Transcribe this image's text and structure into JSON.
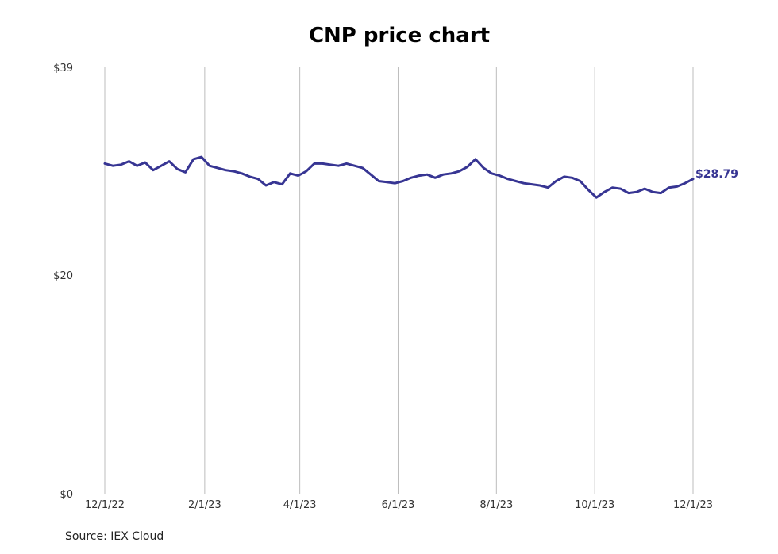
{
  "chart_data": {
    "type": "line",
    "title": "CNP price chart",
    "source": "Source: IEX Cloud",
    "xlabel": "",
    "ylabel": "",
    "x_tick_labels": [
      "12/1/22",
      "2/1/23",
      "4/1/23",
      "6/1/23",
      "8/1/23",
      "10/1/23",
      "12/1/23"
    ],
    "x_tick_dates": [
      "2022-12-01",
      "2023-02-01",
      "2023-04-01",
      "2023-06-01",
      "2023-08-01",
      "2023-10-01",
      "2023-12-01"
    ],
    "y_tick_labels": [
      "$0",
      "$20",
      "$39"
    ],
    "y_tick_values": [
      0,
      20,
      39
    ],
    "ylim": [
      0,
      39
    ],
    "xlim": [
      "2022-12-01",
      "2023-12-01"
    ],
    "grid": "vertical",
    "last_value_label": "$28.79",
    "color": "#373593",
    "series": [
      {
        "x": [
          "2022-12-01",
          "2022-12-06",
          "2022-12-11",
          "2022-12-16",
          "2022-12-21",
          "2022-12-26",
          "2022-12-31",
          "2023-01-05",
          "2023-01-10",
          "2023-01-15",
          "2023-01-20",
          "2023-01-25",
          "2023-01-30",
          "2023-02-04",
          "2023-02-09",
          "2023-02-14",
          "2023-02-19",
          "2023-02-24",
          "2023-03-01",
          "2023-03-06",
          "2023-03-11",
          "2023-03-16",
          "2023-03-21",
          "2023-03-26",
          "2023-03-31",
          "2023-04-05",
          "2023-04-10",
          "2023-04-15",
          "2023-04-20",
          "2023-04-25",
          "2023-04-30",
          "2023-05-05",
          "2023-05-10",
          "2023-05-15",
          "2023-05-20",
          "2023-05-25",
          "2023-05-30",
          "2023-06-04",
          "2023-06-09",
          "2023-06-14",
          "2023-06-19",
          "2023-06-24",
          "2023-06-29",
          "2023-07-04",
          "2023-07-09",
          "2023-07-14",
          "2023-07-19",
          "2023-07-24",
          "2023-07-29",
          "2023-08-03",
          "2023-08-08",
          "2023-08-13",
          "2023-08-18",
          "2023-08-23",
          "2023-08-28",
          "2023-09-02",
          "2023-09-07",
          "2023-09-12",
          "2023-09-17",
          "2023-09-22",
          "2023-09-27",
          "2023-10-02",
          "2023-10-07",
          "2023-10-12",
          "2023-10-17",
          "2023-10-22",
          "2023-10-27",
          "2023-11-01",
          "2023-11-06",
          "2023-11-11",
          "2023-11-16",
          "2023-11-21",
          "2023-11-26",
          "2023-12-01"
        ],
        "values": [
          30.2,
          30.0,
          30.1,
          30.4,
          30.0,
          30.3,
          29.6,
          30.0,
          30.4,
          29.7,
          29.4,
          30.6,
          30.8,
          30.0,
          29.8,
          29.6,
          29.5,
          29.3,
          29.0,
          28.8,
          28.2,
          28.5,
          28.3,
          29.3,
          29.1,
          29.5,
          30.2,
          30.2,
          30.1,
          30.0,
          30.2,
          30.0,
          29.8,
          29.2,
          28.6,
          28.5,
          28.4,
          28.6,
          28.9,
          29.1,
          29.2,
          28.9,
          29.2,
          29.3,
          29.5,
          29.9,
          30.6,
          29.8,
          29.3,
          29.1,
          28.8,
          28.6,
          28.4,
          28.3,
          28.2,
          28.0,
          28.6,
          29.0,
          28.9,
          28.6,
          27.8,
          27.1,
          27.6,
          28.0,
          27.9,
          27.5,
          27.6,
          27.9,
          27.6,
          27.5,
          28.0,
          28.1,
          28.4,
          28.79
        ]
      }
    ]
  }
}
